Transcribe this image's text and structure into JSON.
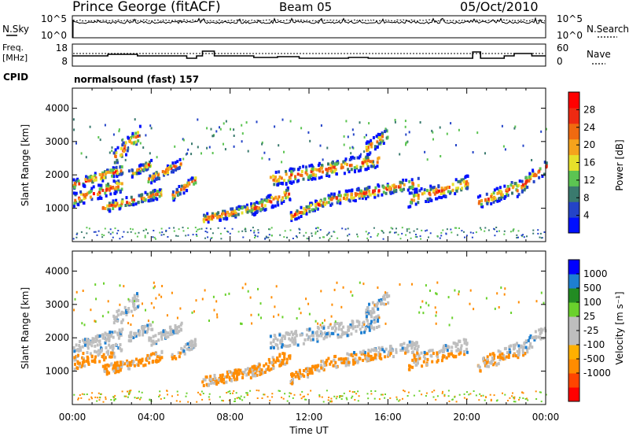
{
  "header": {
    "station": "Prince George (fitACF)",
    "beam": "Beam 05",
    "date": "05/Oct/2010"
  },
  "status_panel": {
    "left_label": "N.Sky",
    "right_label": "N.Search",
    "left_ticks": [
      "10^5",
      "10^0"
    ],
    "right_ticks": [
      "10^5",
      "10^0"
    ]
  },
  "freq_panel": {
    "left_label_1": "Freq.",
    "left_label_2": "[MHz]",
    "right_label": "Nave",
    "left_ticks": [
      "18",
      "8"
    ],
    "right_ticks": [
      "60",
      "0"
    ]
  },
  "cpid": {
    "label": "CPID",
    "text": "normalsound (fast) 157"
  },
  "colors": {
    "power_scale": [
      "#0010ff",
      "#2444c8",
      "#3a7a6e",
      "#5cc452",
      "#e6e02a",
      "#f5a31c",
      "#f06a10",
      "#ee2a12",
      "#ff0000"
    ],
    "velocity_scale": [
      "#ff0000",
      "#ff4500",
      "#ff8c00",
      "#ffb000",
      "#bebebe",
      "#bebebe",
      "#6ad12c",
      "#228b22",
      "#1e7fd1",
      "#0000ff"
    ]
  },
  "chart_data": [
    {
      "type": "heatmap",
      "name": "power",
      "xlabel": "",
      "ylabel": "Slant Range [km]",
      "x_ticks": [
        "00:00",
        "04:00",
        "08:00",
        "12:00",
        "16:00",
        "20:00",
        "00:00"
      ],
      "y_ticks": [
        1000,
        2000,
        3000,
        4000
      ],
      "ylim": [
        0,
        4600
      ],
      "xlim": [
        0,
        24
      ],
      "colorbar_label": "Power [dB]",
      "colorbar_ticks": [
        4,
        8,
        12,
        16,
        20,
        24,
        28
      ],
      "colorbar_range": [
        0,
        32
      ]
    },
    {
      "type": "heatmap",
      "name": "velocity",
      "xlabel": "Time UT",
      "ylabel": "Slant Range [km]",
      "x_ticks": [
        "00:00",
        "04:00",
        "08:00",
        "12:00",
        "16:00",
        "20:00",
        "00:00"
      ],
      "y_ticks": [
        1000,
        2000,
        3000,
        4000
      ],
      "ylim": [
        0,
        4600
      ],
      "xlim": [
        0,
        24
      ],
      "colorbar_label": "Velocity [m s⁻¹]",
      "colorbar_ticks": [
        1000,
        500,
        100,
        25,
        -25,
        -100,
        -500,
        -1000
      ]
    }
  ]
}
